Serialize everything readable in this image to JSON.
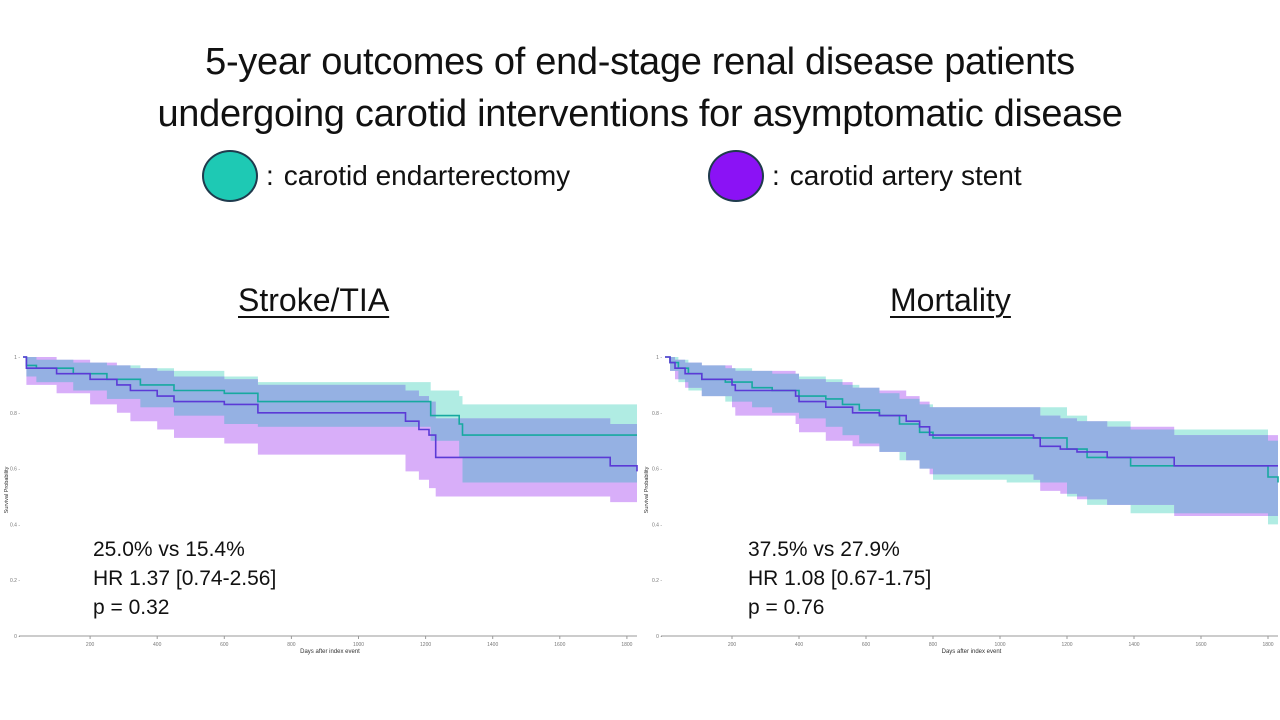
{
  "title_line1": "5-year outcomes of end-stage renal disease patients",
  "title_line2": "undergoing carotid interventions for asymptomatic disease",
  "legend": [
    {
      "label": "carotid endarterectomy",
      "color": "#1ec9b4",
      "icon": "teal-circle-icon"
    },
    {
      "label": "carotid artery stent",
      "color": "#8b12f5",
      "icon": "purple-circle-icon"
    }
  ],
  "legend_separator": ":",
  "colors": {
    "cea_line": "#17a9a0",
    "cas_line": "#5b3ad6",
    "cea_band": "#7fe0d2",
    "cas_band": "#c07cf6",
    "overlap_band": "#95b1e3"
  },
  "chart_data": [
    {
      "type": "line",
      "subtype": "kaplan-meier",
      "title": "Stroke/TIA",
      "xlabel": "Days after index event",
      "ylabel": "Survival Probability",
      "xlim": [
        0,
        1830
      ],
      "ylim": [
        0,
        1
      ],
      "xticks": [
        200,
        400,
        600,
        800,
        1000,
        1200,
        1400,
        1600,
        1800
      ],
      "yticks": [
        "0",
        "0.2",
        "0.4",
        "0.6",
        "0.8",
        "1"
      ],
      "grid": false,
      "annotation": [
        "25.0% vs 15.4%",
        "HR 1.37 [0.74-2.56]",
        "p = 0.32"
      ],
      "series": [
        {
          "name": "carotid endarterectomy",
          "x": [
            0,
            10,
            40,
            150,
            250,
            350,
            450,
            600,
            700,
            1215,
            1300,
            1310,
            1830
          ],
          "y": [
            1.0,
            0.97,
            0.96,
            0.94,
            0.92,
            0.9,
            0.88,
            0.87,
            0.84,
            0.79,
            0.76,
            0.72,
            0.72
          ],
          "lower": [
            1.0,
            0.93,
            0.91,
            0.88,
            0.85,
            0.82,
            0.79,
            0.76,
            0.75,
            0.7,
            0.64,
            0.55,
            0.55
          ],
          "upper": [
            1.0,
            1.0,
            0.99,
            0.98,
            0.97,
            0.96,
            0.95,
            0.93,
            0.91,
            0.88,
            0.86,
            0.83,
            0.83
          ]
        },
        {
          "name": "carotid artery stent",
          "x": [
            0,
            10,
            100,
            200,
            280,
            320,
            400,
            450,
            600,
            700,
            1140,
            1180,
            1210,
            1230,
            1640,
            1750,
            1830
          ],
          "y": [
            1.0,
            0.96,
            0.94,
            0.92,
            0.9,
            0.88,
            0.86,
            0.84,
            0.83,
            0.8,
            0.77,
            0.74,
            0.72,
            0.64,
            0.64,
            0.61,
            0.59
          ],
          "lower": [
            1.0,
            0.9,
            0.87,
            0.83,
            0.8,
            0.77,
            0.74,
            0.71,
            0.69,
            0.65,
            0.59,
            0.56,
            0.53,
            0.5,
            0.5,
            0.48,
            0.46
          ],
          "upper": [
            1.0,
            1.0,
            0.99,
            0.98,
            0.97,
            0.96,
            0.95,
            0.93,
            0.92,
            0.9,
            0.88,
            0.86,
            0.84,
            0.78,
            0.78,
            0.76,
            0.74
          ]
        }
      ]
    },
    {
      "type": "line",
      "subtype": "kaplan-meier",
      "title": "Mortality",
      "xlabel": "Days after index event",
      "ylabel": "Survival Probability",
      "xlim": [
        0,
        1830
      ],
      "ylim": [
        0,
        1
      ],
      "xticks": [
        200,
        400,
        600,
        800,
        1000,
        1200,
        1400,
        1600,
        1800
      ],
      "yticks": [
        "0",
        "0.2",
        "0.4",
        "0.6",
        "0.8",
        "1"
      ],
      "grid": false,
      "annotation": [
        "37.5% vs 27.9%",
        "HR 1.08 [0.67-1.75]",
        "p = 0.76"
      ],
      "series": [
        {
          "name": "carotid endarterectomy",
          "x": [
            0,
            15,
            40,
            70,
            110,
            180,
            260,
            320,
            400,
            480,
            530,
            580,
            640,
            700,
            760,
            800,
            1020,
            1200,
            1260,
            1390,
            1800,
            1830
          ],
          "y": [
            1.0,
            0.98,
            0.96,
            0.94,
            0.92,
            0.91,
            0.89,
            0.88,
            0.86,
            0.85,
            0.83,
            0.81,
            0.79,
            0.76,
            0.73,
            0.71,
            0.71,
            0.67,
            0.64,
            0.61,
            0.57,
            0.55
          ],
          "lower": [
            1.0,
            0.95,
            0.91,
            0.88,
            0.86,
            0.84,
            0.82,
            0.8,
            0.78,
            0.75,
            0.72,
            0.69,
            0.66,
            0.63,
            0.6,
            0.56,
            0.55,
            0.5,
            0.47,
            0.44,
            0.4,
            0.38
          ],
          "upper": [
            1.0,
            1.0,
            0.99,
            0.98,
            0.97,
            0.96,
            0.95,
            0.94,
            0.93,
            0.92,
            0.9,
            0.89,
            0.87,
            0.85,
            0.83,
            0.82,
            0.82,
            0.79,
            0.77,
            0.74,
            0.7,
            0.68
          ]
        },
        {
          "name": "carotid artery stent",
          "x": [
            0,
            15,
            30,
            60,
            110,
            200,
            210,
            390,
            400,
            480,
            560,
            640,
            720,
            760,
            790,
            1100,
            1120,
            1180,
            1230,
            1320,
            1520,
            1830
          ],
          "y": [
            1.0,
            0.98,
            0.96,
            0.94,
            0.92,
            0.9,
            0.88,
            0.86,
            0.84,
            0.82,
            0.8,
            0.79,
            0.77,
            0.75,
            0.72,
            0.71,
            0.68,
            0.67,
            0.66,
            0.64,
            0.61,
            0.61
          ],
          "lower": [
            1.0,
            0.95,
            0.92,
            0.89,
            0.86,
            0.82,
            0.79,
            0.76,
            0.73,
            0.7,
            0.68,
            0.66,
            0.63,
            0.6,
            0.58,
            0.56,
            0.52,
            0.51,
            0.49,
            0.47,
            0.43,
            0.42
          ],
          "upper": [
            1.0,
            1.0,
            0.99,
            0.98,
            0.97,
            0.96,
            0.95,
            0.94,
            0.92,
            0.91,
            0.89,
            0.88,
            0.86,
            0.84,
            0.82,
            0.82,
            0.79,
            0.78,
            0.77,
            0.75,
            0.72,
            0.72
          ]
        }
      ]
    }
  ]
}
